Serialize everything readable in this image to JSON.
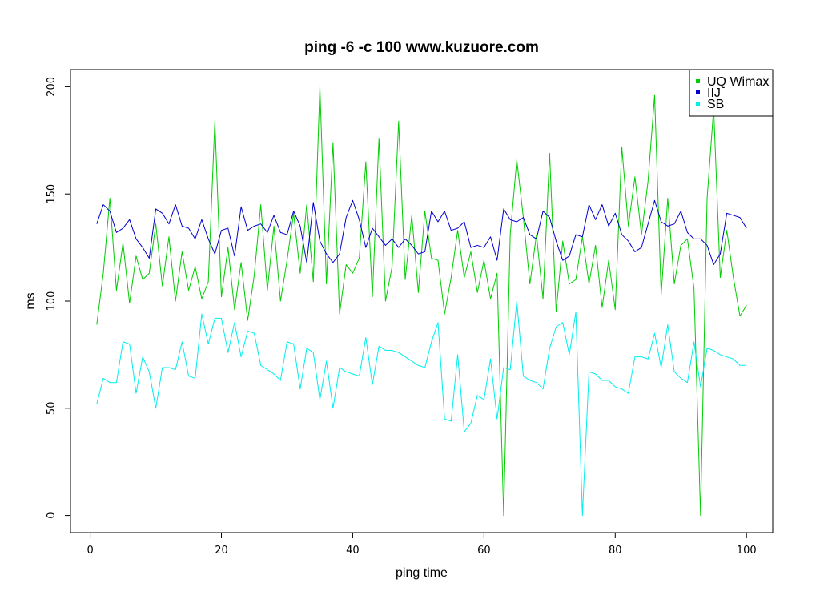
{
  "chart_data": {
    "type": "line",
    "title": "ping -6 -c 100 www.kuzuore.com",
    "xlabel": "ping time",
    "ylabel": "ms",
    "xlim": [
      -3,
      104
    ],
    "ylim": [
      -8,
      208
    ],
    "x_ticks": [
      0,
      20,
      40,
      60,
      80,
      100
    ],
    "y_ticks": [
      0,
      50,
      100,
      150,
      200
    ],
    "legend_position": "top-right",
    "grid": false,
    "series": [
      {
        "name": "UQ Wimax",
        "color": "#00cd00",
        "values": [
          89,
          113,
          148,
          105,
          127,
          99,
          121,
          110,
          113,
          136,
          107,
          130,
          100,
          123,
          105,
          116,
          101,
          109,
          184,
          102,
          125,
          96,
          118,
          91,
          112,
          145,
          105,
          135,
          100,
          119,
          141,
          113,
          145,
          109,
          200,
          108,
          174,
          94,
          117,
          113,
          120,
          165,
          102,
          176,
          100,
          116,
          184,
          110,
          140,
          104,
          142,
          120,
          119,
          94,
          111,
          133,
          111,
          123,
          104,
          119,
          101,
          113,
          0,
          131,
          166,
          139,
          108,
          131,
          101,
          169,
          95,
          128,
          108,
          110,
          130,
          108,
          126,
          97,
          119,
          96,
          172,
          135,
          158,
          131,
          156,
          196,
          103,
          148,
          108,
          126,
          129,
          106,
          0,
          148,
          190,
          111,
          133,
          111,
          93,
          98
        ]
      },
      {
        "name": "IIJ",
        "color": "#0000cd",
        "values": [
          136,
          145,
          142,
          132,
          134,
          138,
          129,
          125,
          120,
          143,
          141,
          136,
          145,
          135,
          134,
          129,
          138,
          129,
          122,
          133,
          134,
          121,
          144,
          133,
          135,
          136,
          132,
          140,
          132,
          131,
          142,
          135,
          118,
          146,
          128,
          122,
          118,
          122,
          139,
          147,
          138,
          125,
          134,
          130,
          126,
          129,
          125,
          129,
          126,
          122,
          123,
          142,
          137,
          142,
          133,
          134,
          137,
          125,
          126,
          125,
          130,
          119,
          143,
          138,
          137,
          139,
          131,
          129,
          142,
          139,
          128,
          119,
          121,
          131,
          130,
          145,
          138,
          145,
          135,
          141,
          131,
          128,
          123,
          125,
          136,
          147,
          137,
          135,
          136,
          142,
          132,
          129,
          129,
          126,
          117,
          122,
          141,
          140,
          139,
          134
        ]
      },
      {
        "name": "SB",
        "color": "#00eeee",
        "values": [
          52,
          64,
          62,
          62,
          81,
          80,
          57,
          74,
          67,
          50,
          69,
          69,
          68,
          81,
          65,
          64,
          94,
          80,
          92,
          92,
          76,
          90,
          74,
          86,
          85,
          70,
          68,
          66,
          63,
          81,
          80,
          59,
          78,
          76,
          54,
          72,
          50,
          69,
          67,
          66,
          65,
          83,
          61,
          79,
          77,
          77,
          76,
          74,
          72,
          70,
          69,
          81,
          90,
          45,
          44,
          75,
          39,
          43,
          56,
          54,
          73,
          45,
          69,
          68,
          100,
          65,
          63,
          62,
          59,
          78,
          88,
          90,
          75,
          95,
          0,
          67,
          66,
          63,
          63,
          60,
          59,
          57,
          74,
          74,
          73,
          85,
          69,
          89,
          67,
          64,
          62,
          81,
          60,
          78,
          77,
          75,
          74,
          73,
          70,
          70
        ]
      }
    ]
  }
}
